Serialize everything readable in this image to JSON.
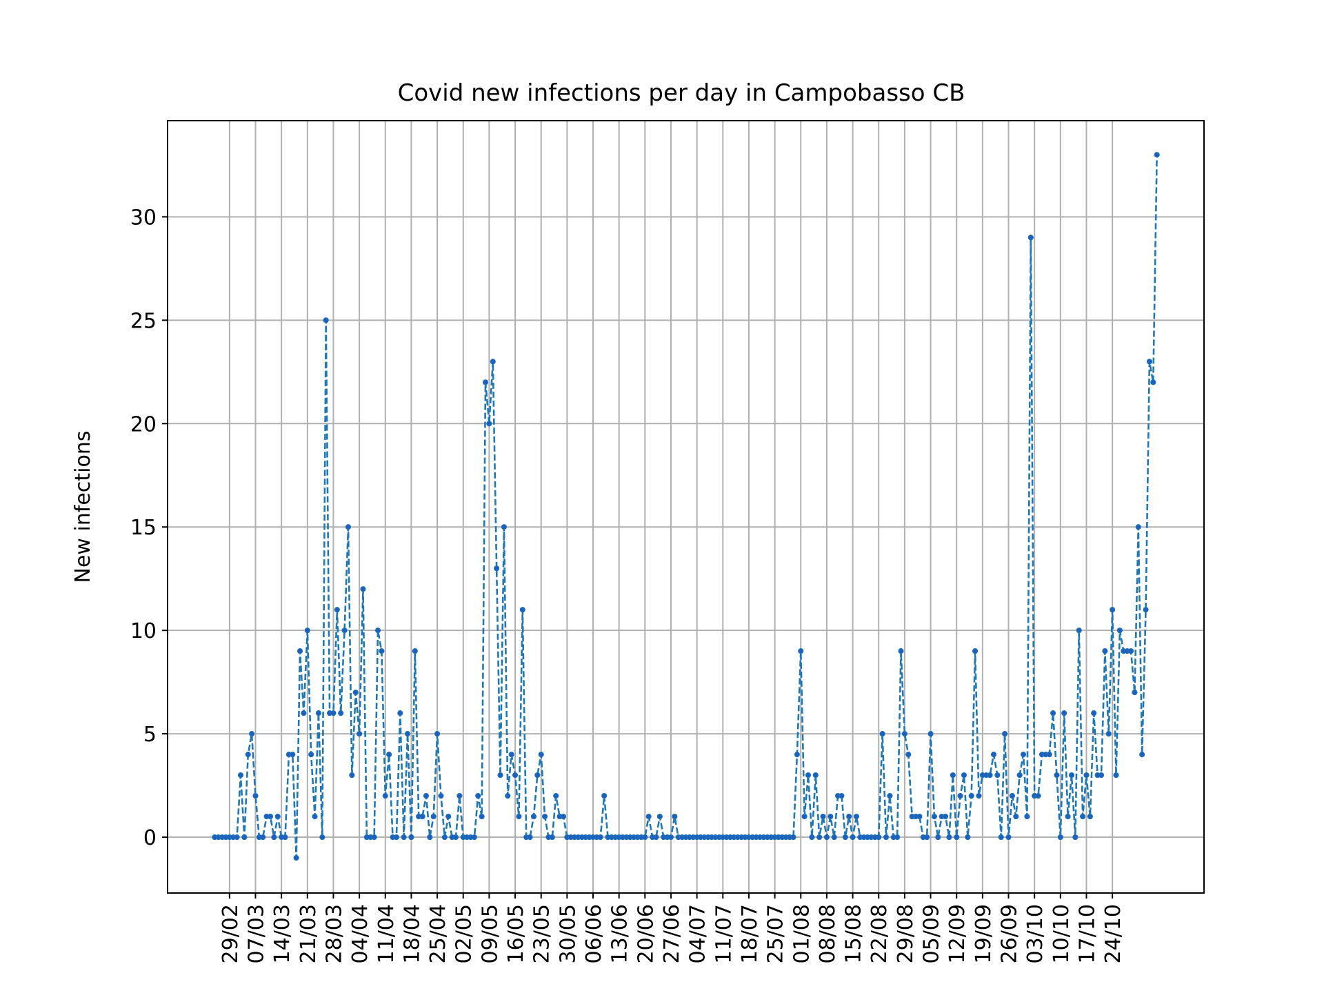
{
  "chart_data": {
    "type": "line",
    "title": "Covid new infections per day in Campobasso CB",
    "xlabel": "",
    "ylabel": "New infections",
    "ylim": [
      -2.7,
      34.65
    ],
    "yticks": [
      0,
      5,
      10,
      15,
      20,
      25,
      30
    ],
    "grid": true,
    "series_color": "#1f77b4",
    "marker_color": "#1f5fc0",
    "x_tick_labels": [
      "29/02",
      "07/03",
      "14/03",
      "21/03",
      "28/03",
      "04/04",
      "11/04",
      "18/04",
      "25/04",
      "02/05",
      "09/05",
      "16/05",
      "23/05",
      "30/05",
      "06/06",
      "13/06",
      "20/06",
      "27/06",
      "04/07",
      "11/07",
      "18/07",
      "25/07",
      "01/08",
      "08/08",
      "15/08",
      "22/08",
      "29/08",
      "05/09",
      "12/09",
      "19/09",
      "26/09",
      "03/10",
      "10/10",
      "17/10",
      "24/10"
    ],
    "start_date": "25/02",
    "values": [
      0,
      0,
      0,
      0,
      0,
      0,
      0,
      3,
      0,
      4,
      5,
      2,
      0,
      0,
      1,
      1,
      0,
      1,
      0,
      0,
      4,
      4,
      -1,
      9,
      6,
      10,
      4,
      1,
      6,
      0,
      25,
      6,
      6,
      11,
      6,
      10,
      15,
      3,
      7,
      5,
      12,
      0,
      0,
      0,
      10,
      9,
      2,
      4,
      0,
      0,
      6,
      0,
      5,
      0,
      9,
      1,
      1,
      2,
      0,
      1,
      5,
      2,
      0,
      1,
      0,
      0,
      2,
      0,
      0,
      0,
      0,
      2,
      1,
      22,
      20,
      23,
      13,
      3,
      15,
      2,
      4,
      3,
      1,
      11,
      0,
      0,
      1,
      3,
      4,
      1,
      0,
      0,
      2,
      1,
      1,
      0,
      0,
      0,
      0,
      0,
      0,
      0,
      0,
      0,
      0,
      2,
      0,
      0,
      0,
      0,
      0,
      0,
      0,
      0,
      0,
      0,
      0,
      1,
      0,
      0,
      1,
      0,
      0,
      0,
      1,
      0,
      0,
      0,
      0,
      0,
      0,
      0,
      0,
      0,
      0,
      0,
      0,
      0,
      0,
      0,
      0,
      0,
      0,
      0,
      0,
      0,
      0,
      0,
      0,
      0,
      0,
      0,
      0,
      0,
      0,
      0,
      0,
      4,
      9,
      1,
      3,
      0,
      3,
      0,
      1,
      0,
      1,
      0,
      2,
      2,
      0,
      1,
      0,
      1,
      0,
      0,
      0,
      0,
      0,
      0,
      5,
      0,
      2,
      0,
      0,
      9,
      5,
      4,
      1,
      1,
      1,
      0,
      0,
      5,
      1,
      0,
      1,
      1,
      0,
      3,
      0,
      2,
      3,
      0,
      2,
      9,
      2,
      3,
      3,
      3,
      4,
      3,
      0,
      5,
      0,
      2,
      1,
      3,
      4,
      1,
      29,
      2,
      2,
      4,
      4,
      4,
      6,
      3,
      0,
      6,
      1,
      3,
      0,
      10,
      1,
      3,
      1,
      6,
      3,
      3,
      9,
      5,
      11,
      3,
      10,
      9,
      9,
      9,
      7,
      15,
      4,
      11,
      23,
      22,
      33
    ]
  }
}
